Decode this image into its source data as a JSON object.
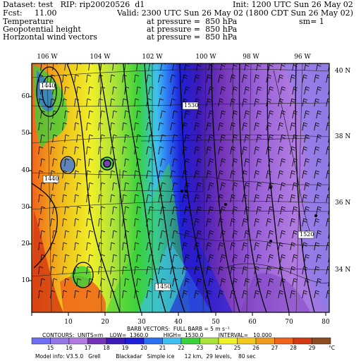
{
  "header": {
    "dataset": "Dataset: test   RIP: rip20020526  d1",
    "init": "Init: 1200 UTC Sun 26 May 02",
    "fcst": "Fcst:     11.00",
    "valid": "Valid: 2300 UTC Sun 26 May 02 (1800 CDT Sun 26 May 02)",
    "row3_left": "Temperature",
    "row3_mid": "at pressure =  850 hPa",
    "row3_right": "sm= 1",
    "row4_left": "Geopotential height",
    "row4_mid": "at pressure =  850 hPa",
    "row5_left": "Horizontal wind vectors",
    "row5_mid": "at pressure =  850 hPa"
  },
  "axes": {
    "x_ticks": [
      "10",
      "20",
      "30",
      "40",
      "50",
      "60",
      "70",
      "80"
    ],
    "y_ticks": [
      "10",
      "20",
      "30",
      "40",
      "50",
      "60"
    ],
    "lon_labels": [
      "106 W",
      "104 W",
      "102 W",
      "100 W",
      "98 W",
      "96 W"
    ],
    "lat_labels": [
      "40 N",
      "38 N",
      "36 N",
      "34 N"
    ]
  },
  "contour_labels": [
    "1440",
    "1440",
    "1450",
    "1530",
    "1520"
  ],
  "footer": {
    "barb_line": "BARB VECTORS:  FULL BARB = 5 m s⁻¹",
    "contour_line": "CONTOURS:  UNITS=m    LOW=  1360.0         HIGH=  1530.0         INTERVAL=   10.000",
    "model_info": "Model info: V3.5.0   Grell         Blackadar   Simple ice      12 km,  29 levels,    80 sec",
    "unit": "°C"
  },
  "colorbar": {
    "labels": [
      "15",
      "16",
      "17",
      "18",
      "19",
      "20",
      "21",
      "22",
      "23",
      "24",
      "25",
      "26",
      "27",
      "28",
      "29"
    ],
    "colors": [
      "#6e6ef5",
      "#9575e4",
      "#b17ae0",
      "#7434b8",
      "#3d1ab8",
      "#1e20d8",
      "#2c6ff2",
      "#3ec0f0",
      "#38d23c",
      "#a9e23a",
      "#f0f028",
      "#f0c81c",
      "#f09a1c",
      "#f0641a",
      "#d43a12",
      "#8e4a20"
    ]
  }
}
